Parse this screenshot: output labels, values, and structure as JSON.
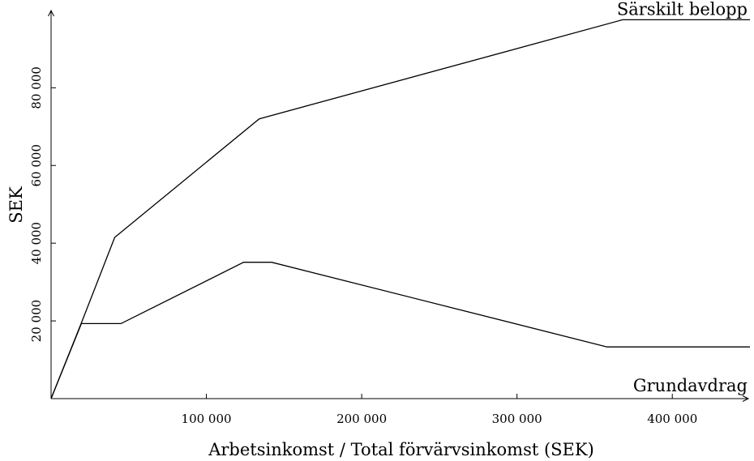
{
  "chart_data": {
    "type": "line",
    "xlabel": "Arbetsinkomst /  Total förvärvsinkomst (SEK)",
    "ylabel": "SEK",
    "xlim": [
      0,
      450000
    ],
    "ylim": [
      0,
      98000
    ],
    "x_ticks": [
      100000,
      200000,
      300000,
      400000
    ],
    "x_tick_labels": [
      "100 000",
      "200 000",
      "300 000",
      "400 000"
    ],
    "y_ticks": [
      20000,
      40000,
      60000,
      80000
    ],
    "y_tick_labels": [
      "20 000",
      "40 000",
      "60 000",
      "80 000"
    ],
    "grid": false,
    "series": [
      {
        "name": "Särskilt belopp",
        "x": [
          0,
          19500,
          41000,
          134000,
          368000,
          450000
        ],
        "y": [
          0,
          19500,
          41500,
          72000,
          97500,
          97500
        ]
      },
      {
        "name": "Grundavdrag",
        "x": [
          0,
          19500,
          45000,
          124000,
          142000,
          358000,
          450000
        ],
        "y": [
          0,
          19300,
          19300,
          35100,
          35100,
          13300,
          13300
        ]
      }
    ]
  }
}
